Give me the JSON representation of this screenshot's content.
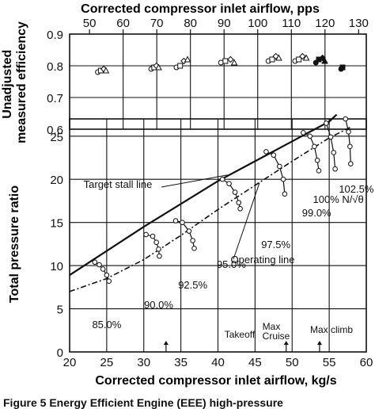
{
  "figure_caption": "Figure 5   Energy Efficient Engine (EEE) high-pressure",
  "chart_data": [
    {
      "type": "scatter",
      "title": "",
      "xlabel_top": "Corrected compressor inlet airflow, pps",
      "ylabel": "Unadjusted measured efficiency",
      "x_ticks_top": [
        "50",
        "60",
        "70",
        "80",
        "90",
        "100",
        "110",
        "120",
        "130"
      ],
      "y_ticks": [
        "0.6",
        "0.7",
        "0.8",
        "0.9"
      ],
      "xlim": [
        20,
        60
      ],
      "ylim": [
        0.6,
        0.9
      ],
      "grid": true,
      "series": [
        {
          "speed": "85.0%",
          "points": [
            [
              23.8,
              0.78
            ],
            [
              24.2,
              0.785
            ],
            [
              24.6,
              0.79
            ],
            [
              24.9,
              0.785
            ]
          ]
        },
        {
          "speed": "90.0%",
          "points": [
            [
              31.0,
              0.79
            ],
            [
              31.4,
              0.795
            ],
            [
              31.7,
              0.8
            ],
            [
              32.0,
              0.795
            ]
          ]
        },
        {
          "speed": "92.5%",
          "points": [
            [
              34.4,
              0.795
            ],
            [
              34.9,
              0.8
            ],
            [
              35.4,
              0.815
            ],
            [
              35.9,
              0.82
            ]
          ]
        },
        {
          "speed": "95.0%",
          "points": [
            [
              40.4,
              0.81
            ],
            [
              41.0,
              0.815
            ],
            [
              41.7,
              0.82
            ],
            [
              42.2,
              0.81
            ]
          ]
        },
        {
          "speed": "97.5%",
          "points": [
            [
              46.8,
              0.815
            ],
            [
              47.3,
              0.82
            ],
            [
              47.8,
              0.83
            ],
            [
              48.2,
              0.825
            ]
          ]
        },
        {
          "speed": "99.0%",
          "points": [
            [
              50.4,
              0.815
            ],
            [
              50.9,
              0.82
            ],
            [
              51.4,
              0.83
            ],
            [
              51.9,
              0.825
            ]
          ]
        },
        {
          "speed": "100%",
          "points": [
            [
              53.2,
              0.81
            ],
            [
              53.6,
              0.82
            ],
            [
              54.1,
              0.825
            ],
            [
              54.4,
              0.815
            ]
          ]
        },
        {
          "speed": "102.5%",
          "points": [
            [
              56.6,
              0.79
            ],
            [
              56.8,
              0.795
            ]
          ]
        }
      ]
    },
    {
      "type": "line",
      "title": "",
      "xlabel": "Corrected compressor inlet airflow, kg/s",
      "ylabel": "Total pressure ratio",
      "x_ticks": [
        "20",
        "25",
        "30",
        "35",
        "40",
        "45",
        "50",
        "55",
        "60"
      ],
      "y_ticks": [
        "0",
        "5",
        "10",
        "15",
        "20",
        "25"
      ],
      "xlim": [
        20,
        60
      ],
      "ylim": [
        0,
        27
      ],
      "grid": true,
      "target_stall_line": {
        "label": "Target stall line",
        "points": [
          [
            20,
            8.9
          ],
          [
            30,
            14.5
          ],
          [
            40,
            19.8
          ],
          [
            45,
            22.1
          ],
          [
            50,
            24.4
          ],
          [
            55,
            26.7
          ],
          [
            56,
            27.5
          ]
        ]
      },
      "operating_line": {
        "label": "Operating line",
        "points": [
          [
            20,
            7.0
          ],
          [
            25,
            8.5
          ],
          [
            30,
            10.7
          ],
          [
            35,
            13.5
          ],
          [
            40,
            16.5
          ],
          [
            45,
            19.3
          ],
          [
            50,
            22.1
          ],
          [
            55,
            24.8
          ],
          [
            58,
            26.1
          ]
        ]
      },
      "speed_lines": [
        {
          "label": "85.0%",
          "points": [
            [
              23.4,
              10.4
            ],
            [
              24.0,
              10.1
            ],
            [
              24.5,
              9.6
            ],
            [
              25.0,
              8.9
            ],
            [
              25.3,
              8.2
            ]
          ]
        },
        {
          "label": "90.0%",
          "points": [
            [
              30.3,
              13.6
            ],
            [
              31.2,
              13.4
            ],
            [
              31.7,
              12.7
            ],
            [
              32.0,
              11.9
            ],
            [
              32.1,
              11.1
            ]
          ]
        },
        {
          "label": "92.5%",
          "points": [
            [
              34.3,
              15.2
            ],
            [
              35.2,
              15.0
            ],
            [
              36.1,
              14.0
            ],
            [
              36.6,
              12.9
            ],
            [
              36.8,
              12.0
            ]
          ]
        },
        {
          "label": "95.0%",
          "points": [
            [
              40.6,
              20.0
            ],
            [
              41.5,
              19.5
            ],
            [
              42.3,
              18.5
            ],
            [
              42.8,
              17.3
            ],
            [
              43.0,
              16.6
            ]
          ]
        },
        {
          "label": "97.5%",
          "points": [
            [
              46.5,
              23.2
            ],
            [
              47.5,
              22.8
            ],
            [
              48.3,
              21.5
            ],
            [
              48.8,
              20.0
            ],
            [
              49.0,
              18.3
            ]
          ]
        },
        {
          "label": "99.0%",
          "points": [
            [
              51.5,
              25.4
            ],
            [
              52.4,
              25.0
            ],
            [
              53.0,
              23.8
            ],
            [
              53.4,
              22.2
            ],
            [
              53.6,
              21.0
            ]
          ]
        },
        {
          "label": "100% N/√θ",
          "points": [
            [
              54.6,
              26.5
            ],
            [
              55.2,
              24.9
            ],
            [
              55.6,
              23.1
            ],
            [
              55.8,
              21.2
            ]
          ]
        },
        {
          "label": "102.5%",
          "points": [
            [
              57.2,
              27.0
            ],
            [
              57.6,
              25.5
            ],
            [
              57.8,
              23.8
            ],
            [
              57.9,
              21.8
            ]
          ]
        }
      ],
      "annotations": [
        "Target stall line",
        "Operating line",
        "Takeoff",
        "Max",
        "Cruise",
        "Max climb"
      ],
      "markers": [
        {
          "label": "",
          "x": 33.0
        },
        {
          "label": "Max Cruise",
          "x": 49.2
        },
        {
          "label": "Max climb",
          "x": 53.7
        }
      ]
    }
  ]
}
